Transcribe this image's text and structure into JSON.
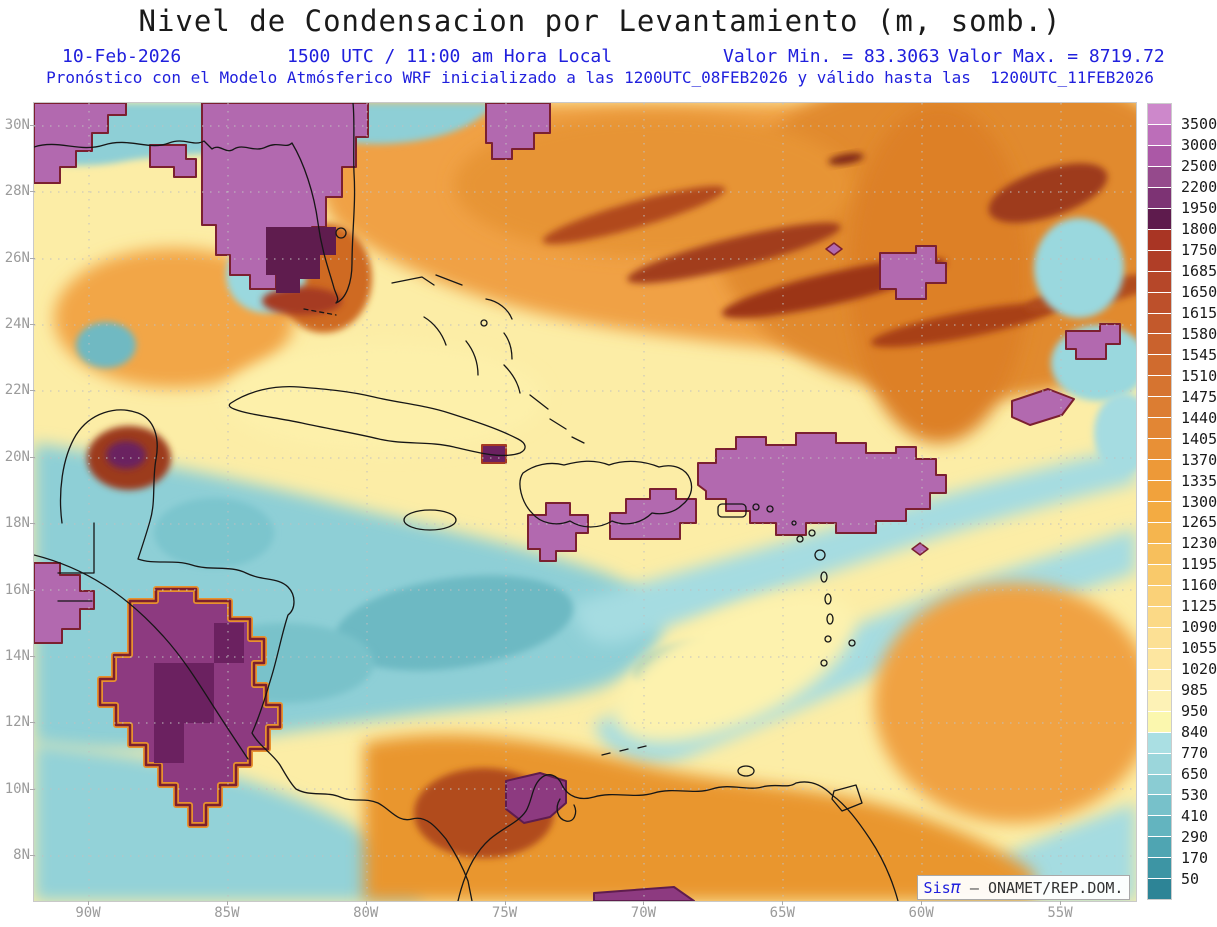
{
  "header": {
    "title": "Nivel de Condensacion por Levantamiento (m, somb.)",
    "date": "10-Feb-2026",
    "time": "1500 UTC / 11:00 am Hora Local",
    "min_label": "Valor Min. = 83.3063",
    "max_label": "Valor Max. = 8719.72",
    "forecast_line": "Pronóstico con el Modelo Atmósferico WRF inicializado a las 1200UTC_08FEB2026 y válido hasta las  1200UTC_11FEB2026",
    "accent_color": "#2020dd"
  },
  "map": {
    "lat_labels": [
      "30N",
      "28N",
      "26N",
      "24N",
      "22N",
      "20N",
      "18N",
      "16N",
      "14N",
      "12N",
      "10N",
      "8N"
    ],
    "lon_labels": [
      "90W",
      "85W",
      "80W",
      "75W",
      "70W",
      "65W",
      "60W",
      "55W"
    ]
  },
  "colorbar": {
    "labels": [
      "3500",
      "3000",
      "2500",
      "2200",
      "1950",
      "1800",
      "1750",
      "1685",
      "1650",
      "1615",
      "1580",
      "1545",
      "1510",
      "1475",
      "1440",
      "1405",
      "1370",
      "1335",
      "1300",
      "1265",
      "1230",
      "1195",
      "1160",
      "1125",
      "1090",
      "1055",
      "1020",
      "985",
      "950",
      "840",
      "770",
      "650",
      "530",
      "410",
      "290",
      "170",
      "50"
    ],
    "colors": [
      "#cd88cb",
      "#bc6eb9",
      "#ab58a6",
      "#954a8c",
      "#7d3374",
      "#5e1b4d",
      "#a93524",
      "#b03e27",
      "#b64729",
      "#bd502b",
      "#c3592c",
      "#ca622d",
      "#d06b2e",
      "#d67430",
      "#dc7d32",
      "#e28634",
      "#e89036",
      "#ed9938",
      "#f1a23c",
      "#f3ab42",
      "#f5b54e",
      "#f7bf5c",
      "#f9c96a",
      "#fad178",
      "#fbd986",
      "#fce094",
      "#fde6a0",
      "#fdecac",
      "#fdf2b6",
      "#fbf7ae",
      "#aadfe3",
      "#9bd6db",
      "#8accd3",
      "#77c1ca",
      "#63b4bf",
      "#4fa5b2",
      "#3d95a4",
      "#2d8496"
    ]
  },
  "attribution": {
    "brand_prefix": "Sis",
    "brand_symbol": "π",
    "separator": " – ",
    "org": "ONAMET/REP.DOM."
  }
}
